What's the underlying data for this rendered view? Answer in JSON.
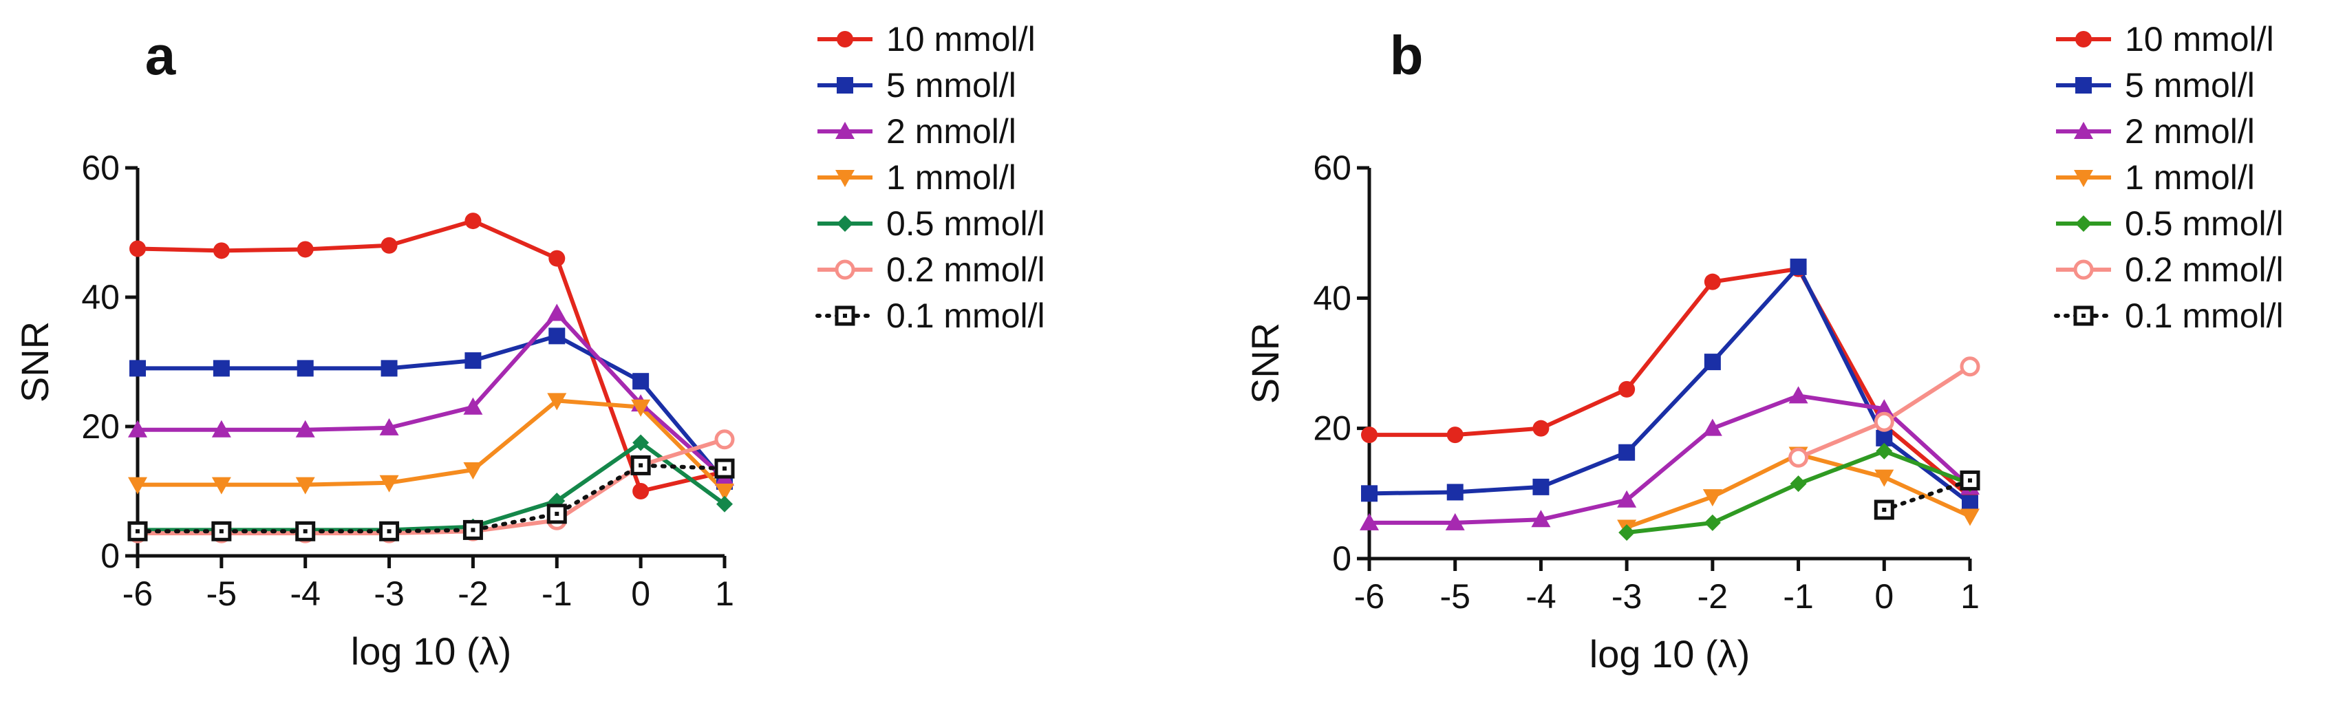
{
  "chart_data": [
    {
      "type": "line",
      "panel_label": "a",
      "title": "",
      "xlabel": "log 10 (λ)",
      "ylabel": "SNR",
      "xlim": [
        -6,
        1
      ],
      "ylim": [
        0,
        60
      ],
      "xticks": [
        -6,
        -5,
        -4,
        -3,
        -2,
        -1,
        0,
        1
      ],
      "yticks": [
        0,
        20,
        40,
        60
      ],
      "grid": false,
      "legend_position": "right",
      "series": [
        {
          "name": "10 mmol/l",
          "color": "#e3261c",
          "marker": "circle",
          "dash": "solid",
          "x": [
            -6,
            -5,
            -4,
            -3,
            -2,
            -1,
            0,
            1
          ],
          "y": [
            47.5,
            47.2,
            47.4,
            48,
            51.8,
            46,
            10,
            13
          ]
        },
        {
          "name": "5 mmol/l",
          "color": "#1a2fa6",
          "marker": "square",
          "dash": "solid",
          "x": [
            -6,
            -5,
            -4,
            -3,
            -2,
            -1,
            0,
            1
          ],
          "y": [
            29,
            29,
            29,
            29,
            30.2,
            34,
            27,
            11.5
          ]
        },
        {
          "name": "2 mmol/l",
          "color": "#a629b0",
          "marker": "triangle-up",
          "dash": "solid",
          "x": [
            -6,
            -5,
            -4,
            -3,
            -2,
            -1,
            0,
            1
          ],
          "y": [
            19.5,
            19.5,
            19.5,
            19.8,
            23,
            37.5,
            23.5,
            12
          ]
        },
        {
          "name": "1 mmol/l",
          "color": "#f58b1e",
          "marker": "triangle-down",
          "dash": "solid",
          "x": [
            -6,
            -5,
            -4,
            -3,
            -2,
            -1,
            0,
            1
          ],
          "y": [
            11,
            11,
            11,
            11.3,
            13.3,
            24,
            23,
            10
          ]
        },
        {
          "name": "0.5 mmol/l",
          "color": "#14874a",
          "marker": "diamond",
          "dash": "solid",
          "x": [
            -6,
            -5,
            -4,
            -3,
            -2,
            -1,
            0,
            1
          ],
          "y": [
            4,
            4,
            4,
            4,
            4.5,
            8.5,
            17.5,
            8
          ]
        },
        {
          "name": "0.2 mmol/l",
          "color": "#f79089",
          "marker": "circle-open",
          "dash": "solid",
          "x": [
            -6,
            -5,
            -4,
            -3,
            -2,
            -1,
            0,
            1
          ],
          "y": [
            3.5,
            3.5,
            3.5,
            3.5,
            3.8,
            5.5,
            14,
            18
          ]
        },
        {
          "name": "0.1 mmol/l",
          "color": "#111111",
          "marker": "square-open",
          "dash": "dotted",
          "x": [
            -6,
            -5,
            -4,
            -3,
            -2,
            -1,
            0,
            1
          ],
          "y": [
            3.8,
            3.8,
            3.8,
            3.8,
            4,
            6.5,
            14,
            13.5
          ]
        }
      ]
    },
    {
      "type": "line",
      "panel_label": "b",
      "title": "",
      "xlabel": "log 10 (λ)",
      "ylabel": "SNR",
      "xlim": [
        -6,
        1
      ],
      "ylim": [
        0,
        60
      ],
      "xticks": [
        -6,
        -5,
        -4,
        -3,
        -2,
        -1,
        0,
        1
      ],
      "yticks": [
        0,
        20,
        40,
        60
      ],
      "grid": false,
      "legend_position": "right",
      "series": [
        {
          "name": "10 mmol/l",
          "color": "#e3261c",
          "marker": "circle",
          "dash": "solid",
          "x": [
            -6,
            -5,
            -4,
            -3,
            -2,
            -1,
            0,
            1
          ],
          "y": [
            19,
            19,
            20,
            26,
            42.5,
            44.5,
            20.5,
            9.5
          ]
        },
        {
          "name": "5 mmol/l",
          "color": "#1a2fa6",
          "marker": "square",
          "dash": "solid",
          "x": [
            -6,
            -5,
            -4,
            -3,
            -2,
            -1,
            0,
            1
          ],
          "y": [
            10,
            10.2,
            11,
            16.3,
            30.2,
            44.8,
            18.5,
            8.5
          ]
        },
        {
          "name": "2 mmol/l",
          "color": "#a629b0",
          "marker": "triangle-up",
          "dash": "solid",
          "x": [
            -6,
            -5,
            -4,
            -3,
            -2,
            -1,
            0,
            1
          ],
          "y": [
            5.5,
            5.5,
            6,
            9,
            20,
            25,
            23,
            11
          ]
        },
        {
          "name": "1 mmol/l",
          "color": "#f58b1e",
          "marker": "triangle-down",
          "dash": "solid",
          "x": [
            -3,
            -2,
            -1,
            0,
            1
          ],
          "y": [
            4.8,
            9.5,
            16,
            12.5,
            6.5
          ]
        },
        {
          "name": "0.5 mmol/l",
          "color": "#2f9a22",
          "marker": "diamond",
          "dash": "solid",
          "x": [
            -3,
            -2,
            -1,
            0,
            1
          ],
          "y": [
            4,
            5.5,
            11.5,
            16.5,
            11.5
          ]
        },
        {
          "name": "0.2 mmol/l",
          "color": "#f79089",
          "marker": "circle-open",
          "dash": "solid",
          "x": [
            -1,
            0,
            1
          ],
          "y": [
            15.5,
            21,
            29.5
          ]
        },
        {
          "name": "0.1 mmol/l",
          "color": "#111111",
          "marker": "square-open",
          "dash": "dotted",
          "x": [
            0,
            1
          ],
          "y": [
            7.5,
            12
          ]
        }
      ]
    }
  ]
}
